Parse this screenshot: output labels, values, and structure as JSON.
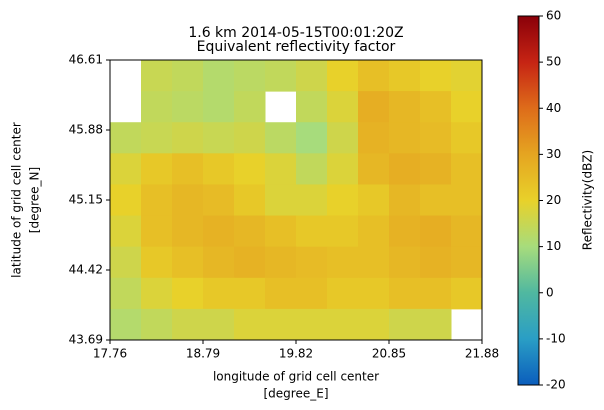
{
  "chart_data": {
    "type": "heatmap",
    "title": "1.6 km 2014-05-15T00:01:20Z",
    "subtitle": "Equivalent reflectivity factor",
    "x_label": "longitude of grid cell center",
    "x_label_unit": "[degree_E]",
    "y_label": "latitude of grid cell center",
    "y_label_unit": "[degree_N]",
    "colorbar_label": "Reflectivity(dBZ)",
    "xlim": [
      17.76,
      21.88
    ],
    "xticks": [
      17.76,
      18.79,
      19.82,
      20.85,
      21.88
    ],
    "ylim": [
      43.69,
      46.61
    ],
    "yticks": [
      43.69,
      44.42,
      45.15,
      45.88,
      46.61
    ],
    "zlim": [
      -20,
      60
    ],
    "zticks": [
      -20,
      -10,
      0,
      10,
      20,
      30,
      40,
      50,
      60
    ],
    "colors": [
      "#0b5dbc",
      "#2a9ec5",
      "#50b8a0",
      "#a7dc7c",
      "#e8d12a",
      "#e5a521",
      "#de6c1a",
      "#c62414",
      "#8a0009"
    ],
    "z": [
      [
        null,
        15,
        14,
        12,
        13,
        14,
        16,
        20,
        24,
        22,
        20,
        19
      ],
      [
        null,
        14,
        13,
        12,
        14,
        null,
        14,
        18,
        28,
        26,
        24,
        20
      ],
      [
        14,
        15,
        16,
        15,
        16,
        13,
        10,
        16,
        27,
        26,
        25,
        22
      ],
      [
        18,
        22,
        24,
        22,
        20,
        18,
        14,
        18,
        26,
        28,
        27,
        24
      ],
      [
        20,
        24,
        26,
        25,
        22,
        18,
        18,
        20,
        22,
        26,
        24,
        24
      ],
      [
        18,
        24,
        26,
        27,
        26,
        24,
        22,
        22,
        24,
        27,
        28,
        26
      ],
      [
        16,
        22,
        24,
        26,
        27,
        26,
        25,
        24,
        24,
        26,
        27,
        26
      ],
      [
        14,
        18,
        20,
        22,
        22,
        24,
        24,
        22,
        22,
        24,
        24,
        22
      ],
      [
        12,
        14,
        16,
        16,
        18,
        18,
        18,
        18,
        18,
        16,
        16,
        null
      ]
    ]
  }
}
